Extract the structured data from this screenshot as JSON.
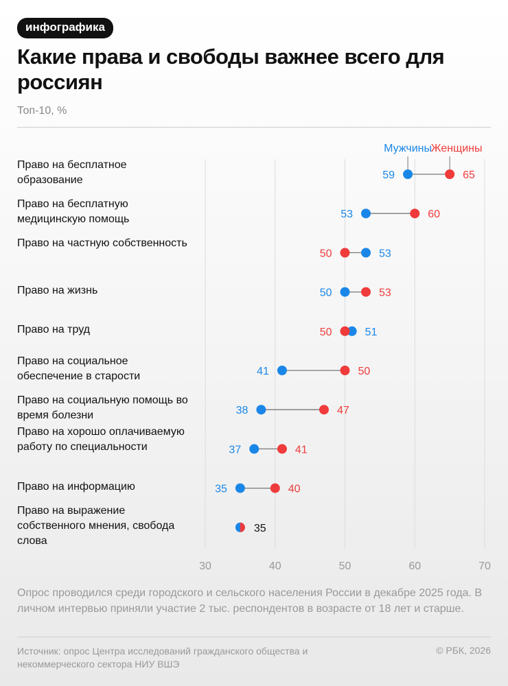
{
  "badge": "инфографика",
  "title": "Какие права и свободы важнее всего для россиян",
  "subtitle": "Топ-10, %",
  "chart_data": {
    "type": "dumbbell",
    "xlim": [
      30,
      70
    ],
    "xticks": [
      "30",
      "40",
      "50",
      "60",
      "70"
    ],
    "grid": true,
    "legend": "top-right",
    "colors": {
      "men": "#1a87e8",
      "women": "#ef3b3b"
    },
    "series": [
      {
        "name": "Мужчины",
        "key": "men"
      },
      {
        "name": "Женщины",
        "key": "women"
      }
    ],
    "categories": [
      "Право на бесплатное образование",
      "Право на бесплатную медицинскую помощь",
      "Право на частную собственность",
      "Право на жизнь",
      "Право на труд",
      "Право на социальное обеспечение в старости",
      "Право на социальную помощь во время болезни",
      "Право на хорошо оплачиваемую работу по специальности",
      "Право на информацию",
      "Право на выражение собственного мнения, свобода слова"
    ],
    "men": [
      59,
      53,
      53,
      50,
      51,
      41,
      38,
      37,
      35,
      35
    ],
    "women": [
      65,
      60,
      50,
      53,
      50,
      50,
      47,
      41,
      40,
      35
    ]
  },
  "note": "Опрос проводился среди городского и сельского населения России в декабре 2025 года. В личном интервью приняли участие 2 тыс. респондентов в возрасте от 18 лет и старше.",
  "source": "Источник: опрос Центра исследований гражданского общества и некоммерческого сектора НИУ ВШЭ",
  "copyright": "© РБК, 2026"
}
